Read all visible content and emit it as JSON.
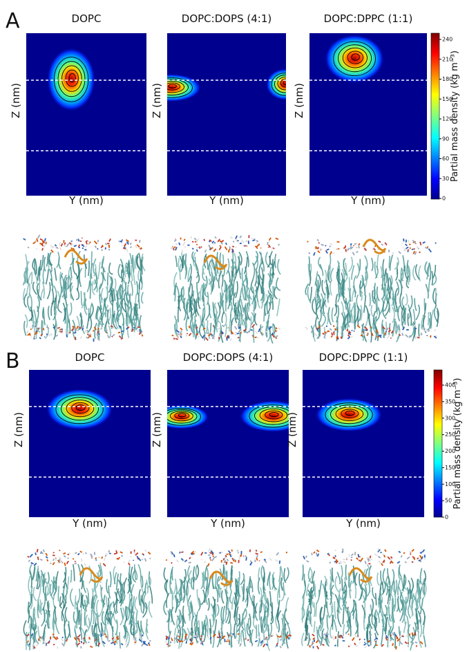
{
  "figure": {
    "panels": [
      {
        "label": "A",
        "plots": [
          {
            "title": "DOPC",
            "xlabel": "Y (nm)",
            "ylabel": "Z (nm)"
          },
          {
            "title": "DOPC:DOPS (4:1)",
            "xlabel": "Y (nm)",
            "ylabel": "Z (nm)"
          },
          {
            "title": "DOPC:DPPC (1:1)",
            "xlabel": "Y (nm)",
            "ylabel": "Z (nm)"
          }
        ],
        "colorbar": {
          "label": "Partial mass density (kg m⁻³)",
          "ticks": [
            0,
            30,
            60,
            90,
            120,
            150,
            180,
            210,
            240
          ]
        }
      },
      {
        "label": "B",
        "plots": [
          {
            "title": "DOPC",
            "xlabel": "Y (nm)",
            "ylabel": "Z (nm)"
          },
          {
            "title": "DOPC:DOPS (4:1)",
            "xlabel": "Y (nm)",
            "ylabel": "Z (nm)"
          },
          {
            "title": "DOPC:DPPC (1:1)",
            "xlabel": "Y (nm)",
            "ylabel": "Z (nm)"
          }
        ],
        "colorbar": {
          "label": "Partial mass density (kg m⁻³)",
          "ticks": [
            0,
            50,
            100,
            150,
            200,
            250,
            300,
            350,
            400
          ]
        }
      }
    ]
  }
}
